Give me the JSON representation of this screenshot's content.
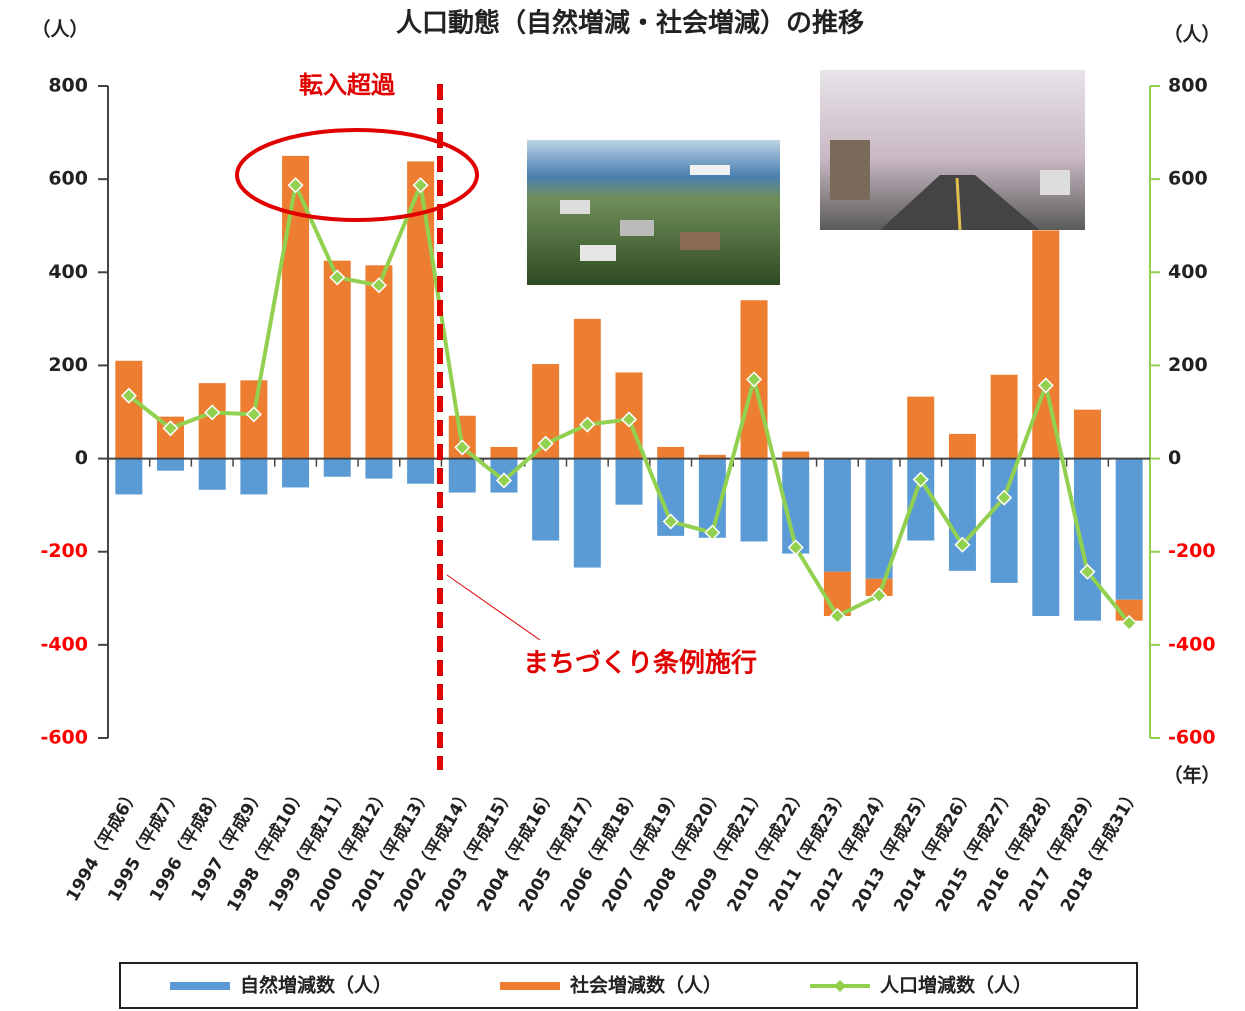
{
  "chart_data": {
    "type": "bar-line",
    "title": "人口動態（自然増減・社会増減）の推移",
    "y_unit_left": "（人）",
    "y_unit_right": "（人）",
    "x_unit": "（年）",
    "categories": [
      "1994（平成6）",
      "1995（平成7）",
      "1996（平成8）",
      "1997（平成9）",
      "1998（平成10）",
      "1999（平成11）",
      "2000（平成12）",
      "2001（平成13）",
      "2002（平成14）",
      "2003（平成15）",
      "2004（平成16）",
      "2005（平成17）",
      "2006（平成18）",
      "2007（平成19）",
      "2008（平成20）",
      "2009（平成21）",
      "2010（平成22）",
      "2011（平成23）",
      "2012（平成24）",
      "2013（平成25）",
      "2014（平成26）",
      "2015（平成27）",
      "2016（平成28）",
      "2017（平成29）",
      "2018（平成31）"
    ],
    "series": [
      {
        "name": "自然増減数（人）",
        "color": "#5b9bd5",
        "kind": "bar",
        "values": [
          -77,
          -26,
          -67,
          -77,
          -62,
          -39,
          -43,
          -54,
          -73,
          -73,
          -176,
          -234,
          -99,
          -166,
          -170,
          -178,
          -204,
          -243,
          -258,
          -176,
          -241,
          -267,
          -338,
          -348,
          -303
        ]
      },
      {
        "name": "社会増減数（人）",
        "color": "#ed7d31",
        "kind": "bar",
        "values": [
          210,
          90,
          162,
          168,
          650,
          425,
          415,
          638,
          92,
          25,
          203,
          300,
          185,
          25,
          8,
          340,
          15,
          -95,
          -37,
          133,
          53,
          180,
          490,
          105,
          -45
        ]
      },
      {
        "name": "人口増減数（人）",
        "color": "#92d050",
        "kind": "line",
        "axis": "y2",
        "values": [
          135,
          65,
          99,
          95,
          587,
          389,
          372,
          587,
          24,
          -47,
          32,
          73,
          84,
          -135,
          -159,
          170,
          -191,
          -338,
          -294,
          -45,
          -185,
          -84,
          157,
          -243,
          -353
        ]
      }
    ],
    "ylim": [
      -600,
      800
    ],
    "yticks": [
      -600,
      -400,
      -200,
      0,
      200,
      400,
      600,
      800
    ],
    "y2lim": [
      -600,
      800
    ],
    "y2ticks": [
      -600,
      -400,
      -200,
      0,
      200,
      400,
      600,
      800
    ],
    "negative_tick_color": "#ff0000",
    "annotations": [
      "転入超過",
      "まちづくり条例施行"
    ]
  }
}
